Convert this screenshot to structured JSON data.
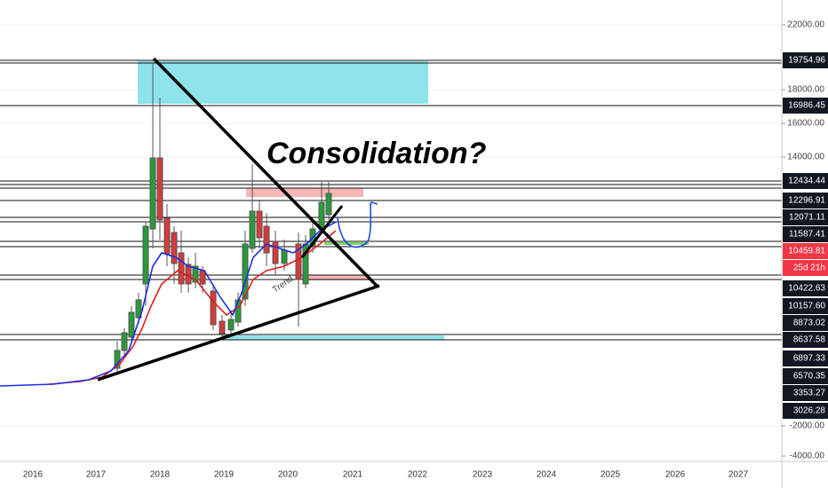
{
  "annotation": "Consolidation?",
  "trend_label": "Trend",
  "time_axis": [
    "2016",
    "2017",
    "2018",
    "2019",
    "2020",
    "2021",
    "2022",
    "2023",
    "2024",
    "2025",
    "2026",
    "2027"
  ],
  "price_axis": {
    "scale_labels": [
      "22000.00",
      "18000.00",
      "16000.00",
      "14000.00",
      "-2000.00",
      "-4000.00"
    ],
    "level_labels": [
      "19754.96",
      "16986.45",
      "12434.44",
      "12296.91",
      "12071.11",
      "11587.41",
      "10422.63",
      "10157.60",
      "8873.02",
      "8637.58",
      "6897.33",
      "6570.35",
      "3353.27",
      "3026.28"
    ],
    "current_price": "10459.81",
    "countdown": "25d 21h"
  }
}
